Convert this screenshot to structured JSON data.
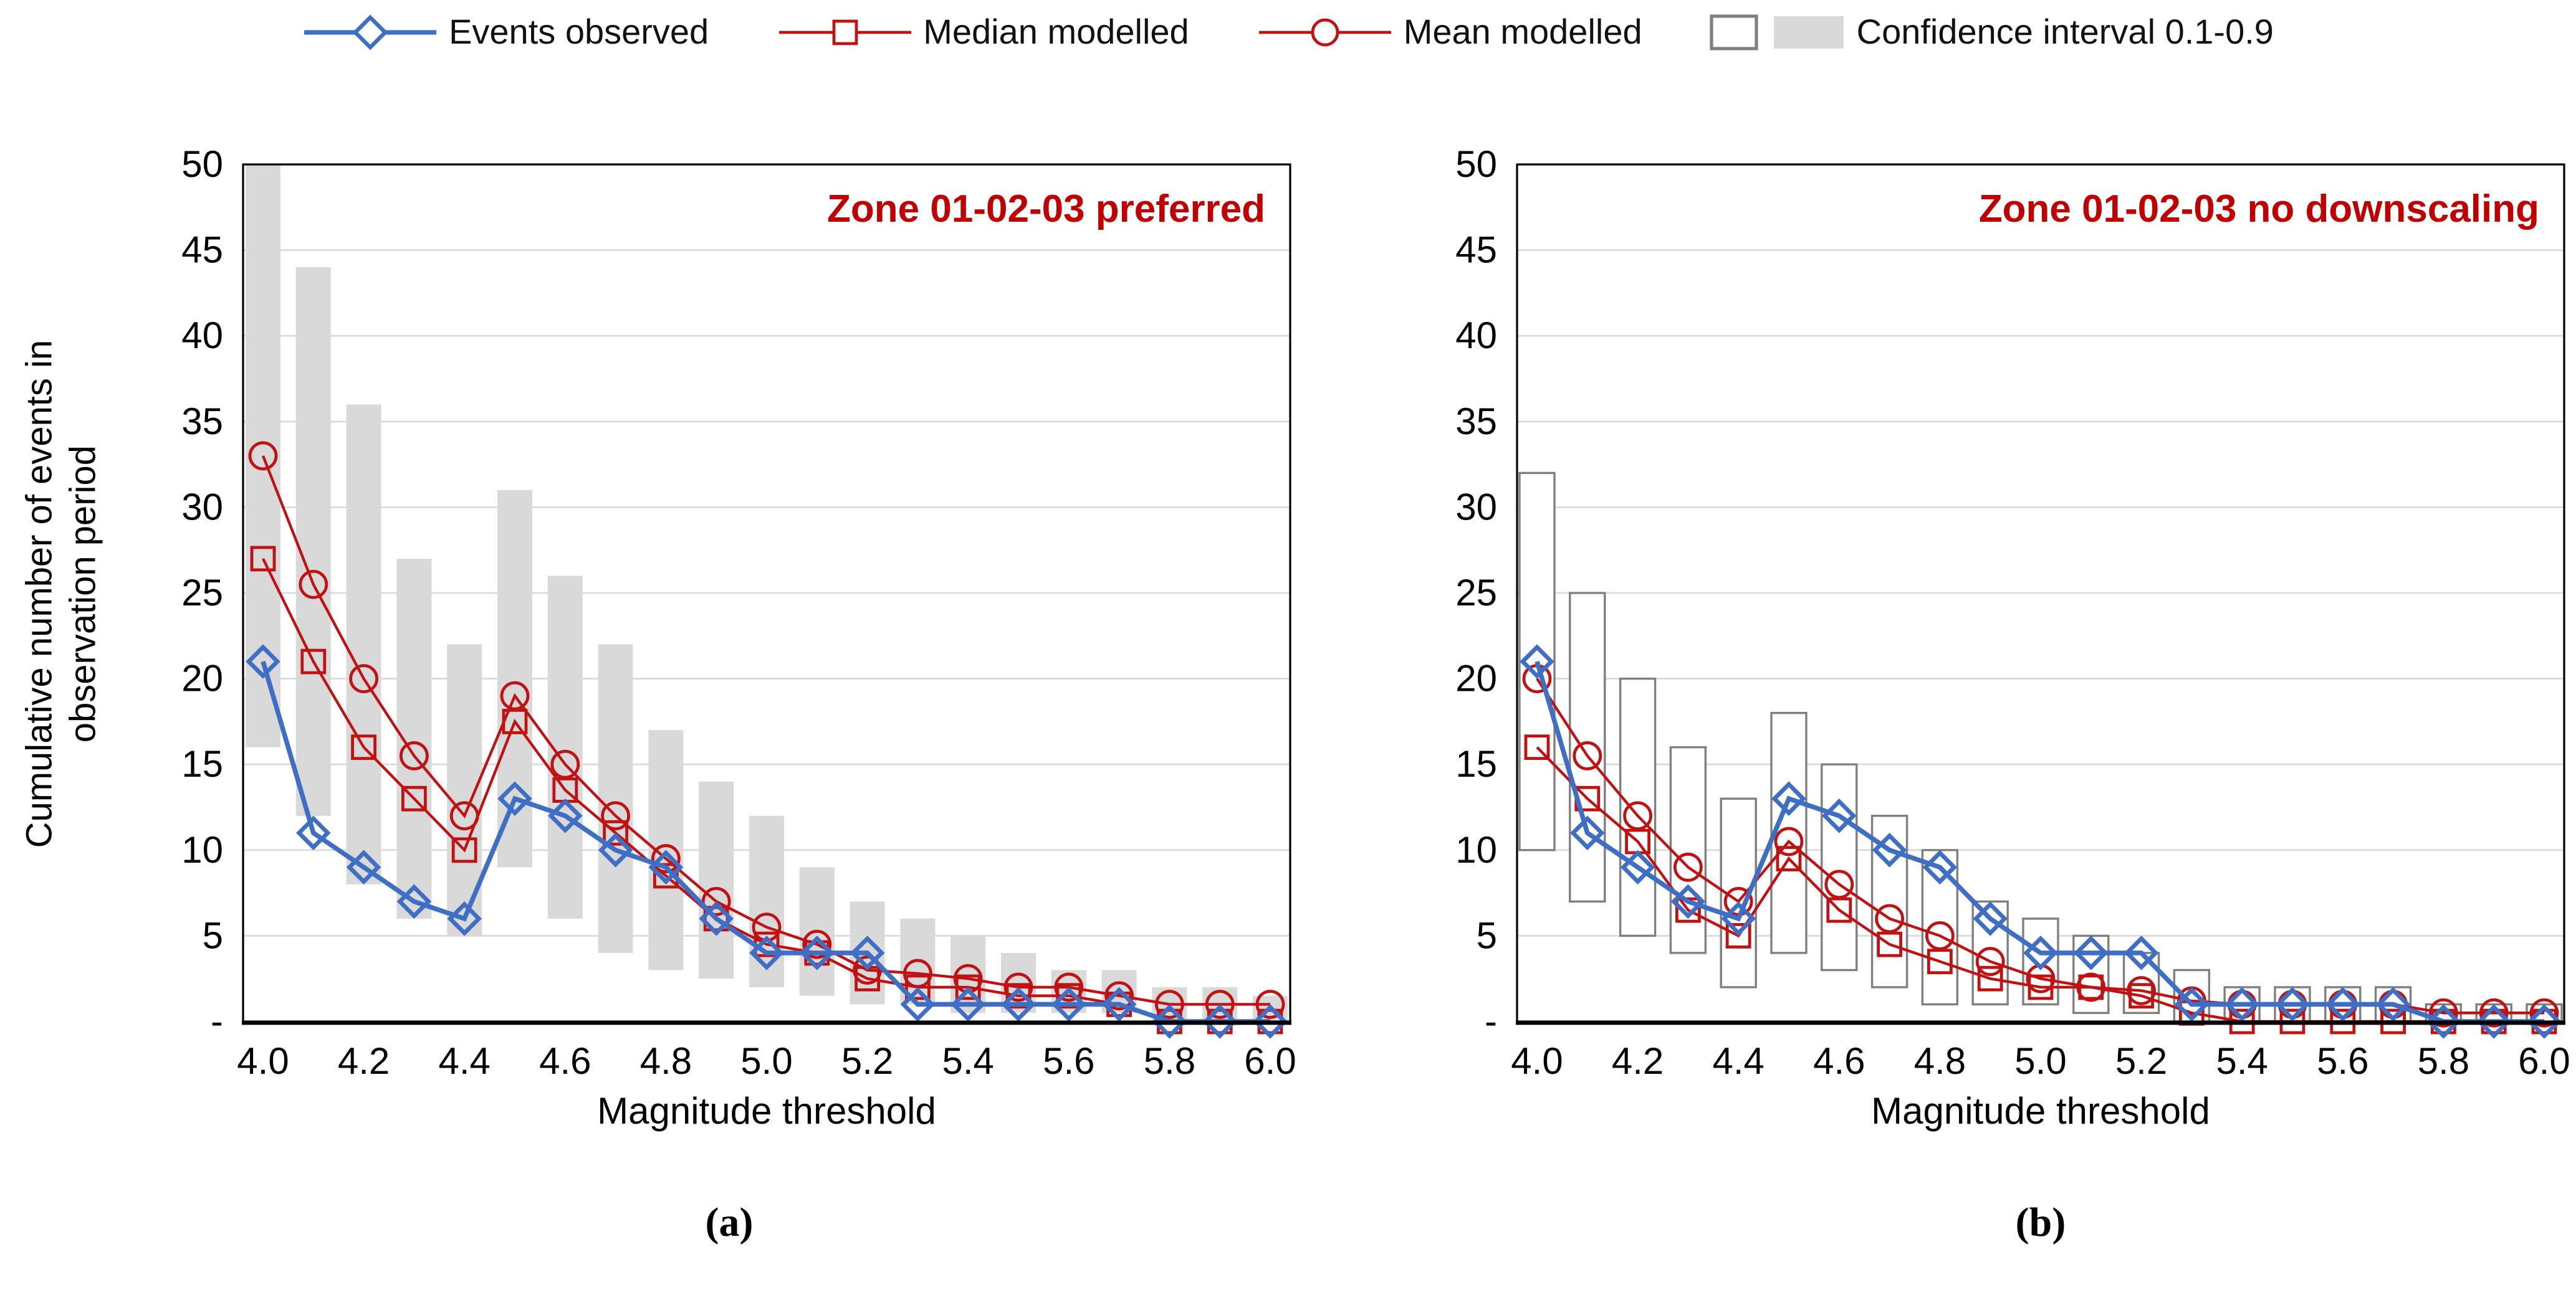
{
  "legend": {
    "items": [
      {
        "label": "Events observed",
        "swatch": "line-diamond",
        "color": "#3F6FC4"
      },
      {
        "label": "Median modelled",
        "swatch": "line-square",
        "color": "#C01212"
      },
      {
        "label": "Mean modelled",
        "swatch": "line-circle",
        "color": "#C01212"
      },
      {
        "label": "Confidence interval 0.1-0.9",
        "swatch": "interval-boxes",
        "outline_color": "#7F7F7F",
        "fill_color": "#D9D9D9"
      }
    ]
  },
  "axes": {
    "y_title_line1": "Cumulative number of events in",
    "y_title_line2": "observation period",
    "x_title": "Magnitude threshold"
  },
  "captions": {
    "a": "(a)",
    "b": "(b)"
  },
  "colors": {
    "observed_blue": "#3F6FC4",
    "modelled_red": "#C01212",
    "title_red": "#C00000",
    "gridline_gray": "#D9D9D9",
    "bar_fill_gray": "#D9D9D9",
    "box_outline_gray": "#7F7F7F"
  },
  "chart_data": [
    {
      "type": "line",
      "title": "Zone 01-02-03 preferred",
      "title_color": "#C00000",
      "xlabel": "Magnitude threshold",
      "ylabel": "Cumulative number of events in observation period",
      "ylim": [
        0,
        50
      ],
      "grid": true,
      "x": [
        4.0,
        4.1,
        4.2,
        4.3,
        4.4,
        4.5,
        4.6,
        4.7,
        4.8,
        4.9,
        5.0,
        5.1,
        5.2,
        5.3,
        5.4,
        5.5,
        5.6,
        5.7,
        5.8,
        5.9,
        6.0
      ],
      "xtick_labels": [
        "4.0",
        "4.2",
        "4.4",
        "4.6",
        "4.8",
        "5.0",
        "5.2",
        "5.4",
        "5.6",
        "5.8",
        "6.0"
      ],
      "ytick_labels": [
        "-",
        "5",
        "10",
        "15",
        "20",
        "25",
        "30",
        "35",
        "40",
        "45",
        "50"
      ],
      "interval": {
        "name": "Confidence interval 0.1-0.9",
        "style": "filled",
        "fill_color": "#D9D9D9",
        "outline_color": "#7F7F7F",
        "low": [
          16,
          12,
          8,
          6,
          5,
          9,
          6,
          4,
          3,
          2.5,
          2,
          1.5,
          1,
          1,
          0.5,
          0.5,
          0.5,
          0.5,
          0,
          0,
          0
        ],
        "high": [
          50,
          44,
          36,
          27,
          22,
          31,
          26,
          22,
          17,
          14,
          12,
          9,
          7,
          6,
          5,
          4,
          3,
          3,
          2,
          2,
          1.5
        ]
      },
      "series": [
        {
          "name": "Median modelled",
          "marker": "square",
          "color": "#C01212",
          "values": [
            27,
            21,
            16,
            13,
            10,
            17.5,
            13.5,
            11,
            8.5,
            6,
            4.5,
            4,
            2.5,
            2,
            2,
            1.5,
            1.5,
            1,
            0,
            0,
            0
          ]
        },
        {
          "name": "Mean modelled",
          "marker": "circle",
          "color": "#C01212",
          "values": [
            33,
            25.5,
            20,
            15.5,
            12,
            19,
            15,
            12,
            9.5,
            7,
            5.5,
            4.5,
            3,
            2.8,
            2.5,
            2,
            2,
            1.5,
            1,
            1,
            1
          ]
        },
        {
          "name": "Events observed",
          "marker": "diamond",
          "color": "#3F6FC4",
          "values": [
            21,
            11,
            9,
            7,
            6,
            13,
            12,
            10,
            9,
            6,
            4,
            4,
            4,
            1,
            1,
            1,
            1,
            1,
            0,
            0,
            0
          ]
        }
      ]
    },
    {
      "type": "line",
      "title": "Zone 01-02-03 no downscaling",
      "title_color": "#C00000",
      "xlabel": "Magnitude threshold",
      "ylabel": "Cumulative number of events in observation period",
      "ylim": [
        0,
        50
      ],
      "grid": true,
      "x": [
        4.0,
        4.1,
        4.2,
        4.3,
        4.4,
        4.5,
        4.6,
        4.7,
        4.8,
        4.9,
        5.0,
        5.1,
        5.2,
        5.3,
        5.4,
        5.5,
        5.6,
        5.7,
        5.8,
        5.9,
        6.0
      ],
      "xtick_labels": [
        "4.0",
        "4.2",
        "4.4",
        "4.6",
        "4.8",
        "5.0",
        "5.2",
        "5.4",
        "5.6",
        "5.8",
        "6.0"
      ],
      "ytick_labels": [
        "-",
        "5",
        "10",
        "15",
        "20",
        "25",
        "30",
        "35",
        "40",
        "45",
        "50"
      ],
      "interval": {
        "name": "Confidence interval 0.1-0.9",
        "style": "outline",
        "fill_color": "#FFFFFF",
        "outline_color": "#7F7F7F",
        "low": [
          10,
          7,
          5,
          4,
          2,
          4,
          3,
          2,
          1,
          1,
          1,
          0.5,
          0.5,
          0,
          0,
          0,
          0,
          0,
          0,
          0,
          0
        ],
        "high": [
          32,
          25,
          20,
          16,
          13,
          18,
          15,
          12,
          10,
          7,
          6,
          5,
          4,
          3,
          2,
          2,
          2,
          2,
          1,
          1,
          1
        ]
      },
      "series": [
        {
          "name": "Median modelled",
          "marker": "square",
          "color": "#C01212",
          "values": [
            16,
            13,
            10.5,
            6.5,
            5,
            9.5,
            6.5,
            4.5,
            3.5,
            2.5,
            2,
            2,
            1.5,
            0.5,
            0,
            0,
            0,
            0,
            0,
            0,
            0
          ]
        },
        {
          "name": "Mean modelled",
          "marker": "circle",
          "color": "#C01212",
          "values": [
            20,
            15.5,
            12,
            9,
            7,
            10.5,
            8,
            6,
            5,
            3.5,
            2.5,
            2,
            1.8,
            1.2,
            1,
            1,
            1,
            1,
            0.5,
            0.5,
            0.5
          ]
        },
        {
          "name": "Events observed",
          "marker": "diamond",
          "color": "#3F6FC4",
          "values": [
            21,
            11,
            9,
            7,
            6,
            13,
            12,
            10,
            9,
            6,
            4,
            4,
            4,
            1,
            1,
            1,
            1,
            1,
            0,
            0,
            0
          ]
        }
      ]
    }
  ]
}
